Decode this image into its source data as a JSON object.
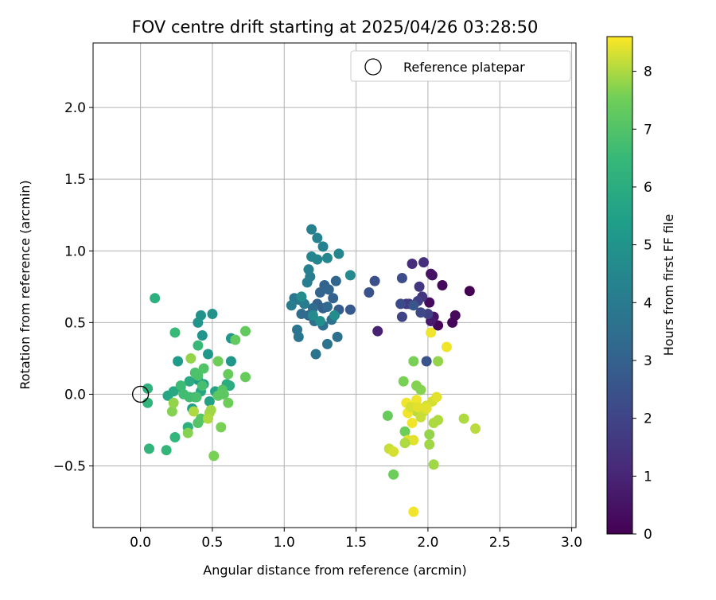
{
  "chart_data": {
    "type": "scatter",
    "title": "FOV centre drift starting at 2025/04/26 03:28:50",
    "xlabel": "Angular distance from reference (arcmin)",
    "ylabel": "Rotation from reference (arcmin)",
    "xlim": [
      -0.33,
      3.03
    ],
    "ylim": [
      -0.93,
      2.45
    ],
    "x_ticks": [
      "0.0",
      "0.5",
      "1.0",
      "1.5",
      "2.0",
      "2.5",
      "3.0"
    ],
    "y_ticks": [
      "−0.5",
      "0.0",
      "0.5",
      "1.0",
      "1.5",
      "2.0"
    ],
    "grid": true,
    "legend": {
      "placement": "top-right",
      "label": "Reference platepar"
    },
    "reference_point": {
      "x": 0.0,
      "y": 0.0
    },
    "colorbar": {
      "label": "Hours from first FF file",
      "min": 0,
      "max": 8.6,
      "ticks": [
        "0",
        "1",
        "2",
        "3",
        "4",
        "5",
        "6",
        "7",
        "8"
      ],
      "colormap": "viridis"
    },
    "points": [
      [
        2.29,
        0.72,
        0.0
      ],
      [
        2.07,
        0.48,
        0.1
      ],
      [
        2.17,
        0.5,
        0.15
      ],
      [
        2.1,
        0.76,
        0.2
      ],
      [
        2.19,
        0.55,
        0.25
      ],
      [
        2.01,
        0.64,
        0.3
      ],
      [
        2.03,
        0.83,
        0.4
      ],
      [
        2.02,
        0.84,
        0.5
      ],
      [
        2.04,
        0.54,
        0.6
      ],
      [
        2.02,
        0.51,
        0.7
      ],
      [
        1.65,
        0.44,
        0.9
      ],
      [
        1.89,
        0.91,
        1.2
      ],
      [
        1.97,
        0.92,
        1.3
      ],
      [
        1.85,
        0.63,
        1.4
      ],
      [
        1.96,
        0.68,
        1.5
      ],
      [
        1.94,
        0.75,
        1.6
      ],
      [
        1.87,
        0.63,
        1.7
      ],
      [
        1.93,
        0.65,
        1.8
      ],
      [
        2.0,
        0.56,
        1.9
      ],
      [
        1.82,
        0.54,
        2.0
      ],
      [
        1.95,
        0.57,
        2.1
      ],
      [
        1.81,
        0.63,
        2.2
      ],
      [
        1.82,
        0.81,
        2.3
      ],
      [
        1.63,
        0.79,
        2.4
      ],
      [
        1.59,
        0.71,
        2.5
      ],
      [
        1.99,
        0.23,
        2.5
      ],
      [
        1.9,
        0.62,
        2.6
      ],
      [
        1.46,
        0.59,
        2.7
      ],
      [
        1.38,
        0.59,
        2.8
      ],
      [
        1.27,
        0.6,
        2.9
      ],
      [
        1.23,
        0.63,
        3.0
      ],
      [
        1.34,
        0.67,
        3.0
      ],
      [
        1.25,
        0.71,
        3.1
      ],
      [
        1.28,
        0.76,
        3.1
      ],
      [
        1.31,
        0.73,
        3.2
      ],
      [
        1.36,
        0.79,
        3.2
      ],
      [
        1.3,
        0.61,
        3.3
      ],
      [
        1.17,
        0.55,
        3.3
      ],
      [
        1.12,
        0.56,
        3.4
      ],
      [
        1.2,
        0.6,
        3.4
      ],
      [
        1.27,
        0.48,
        3.5
      ],
      [
        1.21,
        0.51,
        3.5
      ],
      [
        1.33,
        0.52,
        3.6
      ],
      [
        1.37,
        0.4,
        3.6
      ],
      [
        1.3,
        0.35,
        3.7
      ],
      [
        1.22,
        0.28,
        3.7
      ],
      [
        1.1,
        0.4,
        3.8
      ],
      [
        1.09,
        0.45,
        3.8
      ],
      [
        1.1,
        0.66,
        3.9
      ],
      [
        1.07,
        0.67,
        3.9
      ],
      [
        1.05,
        0.62,
        4.0
      ],
      [
        1.14,
        0.63,
        4.0
      ],
      [
        1.16,
        0.78,
        4.1
      ],
      [
        1.18,
        0.82,
        4.1
      ],
      [
        1.17,
        0.87,
        4.2
      ],
      [
        1.19,
        1.15,
        4.2
      ],
      [
        1.23,
        1.09,
        4.3
      ],
      [
        1.27,
        1.03,
        4.3
      ],
      [
        1.19,
        0.96,
        4.4
      ],
      [
        1.23,
        0.94,
        4.4
      ],
      [
        1.3,
        0.95,
        4.5
      ],
      [
        1.38,
        0.98,
        4.5
      ],
      [
        1.46,
        0.83,
        4.6
      ],
      [
        1.2,
        0.55,
        4.6
      ],
      [
        1.35,
        0.55,
        4.7
      ],
      [
        1.12,
        0.68,
        4.7
      ],
      [
        1.25,
        0.51,
        4.8
      ],
      [
        0.5,
        0.56,
        4.9
      ],
      [
        0.42,
        0.55,
        4.9
      ],
      [
        0.4,
        0.5,
        5.0
      ],
      [
        0.43,
        0.41,
        5.0
      ],
      [
        0.63,
        0.39,
        5.1
      ],
      [
        0.63,
        0.23,
        5.1
      ],
      [
        0.47,
        0.28,
        5.2
      ],
      [
        0.26,
        0.23,
        5.3
      ],
      [
        0.4,
        0.1,
        5.3
      ],
      [
        0.44,
        0.07,
        5.4
      ],
      [
        0.36,
        -0.1,
        5.4
      ],
      [
        0.33,
        -0.23,
        5.5
      ],
      [
        0.48,
        -0.05,
        5.5
      ],
      [
        0.52,
        0.02,
        5.6
      ],
      [
        0.42,
        0.02,
        5.7
      ],
      [
        0.19,
        -0.01,
        5.7
      ],
      [
        0.23,
        0.02,
        5.8
      ],
      [
        0.28,
        0.05,
        5.8
      ],
      [
        0.34,
        0.09,
        5.9
      ],
      [
        0.6,
        0.07,
        6.0
      ],
      [
        0.62,
        0.06,
        6.0
      ],
      [
        0.33,
        -0.23,
        6.1
      ],
      [
        0.1,
        0.67,
        6.1
      ],
      [
        0.05,
        0.04,
        6.2
      ],
      [
        0.05,
        -0.06,
        6.3
      ],
      [
        0.06,
        -0.38,
        6.3
      ],
      [
        0.18,
        -0.39,
        6.4
      ],
      [
        0.24,
        -0.3,
        6.4
      ],
      [
        0.24,
        0.43,
        6.5
      ],
      [
        0.4,
        0.34,
        6.5
      ],
      [
        0.28,
        0.06,
        6.6
      ],
      [
        0.38,
        -0.02,
        6.6
      ],
      [
        0.3,
        0.0,
        6.7
      ],
      [
        0.34,
        -0.02,
        6.7
      ],
      [
        0.39,
        -0.02,
        6.8
      ],
      [
        0.43,
        0.06,
        6.8
      ],
      [
        0.4,
        0.13,
        6.9
      ],
      [
        0.38,
        0.15,
        6.9
      ],
      [
        0.44,
        0.18,
        7.0
      ],
      [
        0.4,
        -0.2,
        7.0
      ],
      [
        0.42,
        -0.17,
        7.1
      ],
      [
        0.57,
        0.03,
        7.1
      ],
      [
        0.54,
        -0.01,
        7.2
      ],
      [
        0.58,
        0.0,
        7.2
      ],
      [
        0.66,
        0.38,
        7.3
      ],
      [
        0.73,
        0.44,
        7.3
      ],
      [
        0.73,
        0.12,
        7.4
      ],
      [
        0.61,
        0.14,
        7.4
      ],
      [
        0.54,
        0.23,
        7.5
      ],
      [
        0.61,
        -0.06,
        7.5
      ],
      [
        0.51,
        -0.43,
        7.6
      ],
      [
        0.56,
        -0.23,
        7.6
      ],
      [
        0.33,
        -0.27,
        7.7
      ],
      [
        0.22,
        -0.12,
        7.7
      ],
      [
        0.23,
        -0.06,
        7.8
      ],
      [
        0.35,
        0.25,
        7.8
      ],
      [
        0.49,
        -0.11,
        7.9
      ],
      [
        0.48,
        -0.13,
        7.9
      ],
      [
        0.47,
        -0.17,
        8.0
      ],
      [
        0.37,
        -0.12,
        8.0
      ],
      [
        1.72,
        -0.15,
        7.4
      ],
      [
        1.76,
        -0.56,
        7.5
      ],
      [
        1.84,
        -0.26,
        7.5
      ],
      [
        1.83,
        0.09,
        7.6
      ],
      [
        1.9,
        0.23,
        7.6
      ],
      [
        1.92,
        0.06,
        7.7
      ],
      [
        1.95,
        0.03,
        7.7
      ],
      [
        2.07,
        0.23,
        7.8
      ],
      [
        2.01,
        -0.28,
        7.8
      ],
      [
        2.01,
        -0.35,
        7.9
      ],
      [
        2.04,
        -0.49,
        7.9
      ],
      [
        2.04,
        -0.2,
        8.0
      ],
      [
        2.07,
        -0.18,
        8.0
      ],
      [
        2.25,
        -0.17,
        8.0
      ],
      [
        2.33,
        -0.24,
        8.1
      ],
      [
        1.92,
        -0.12,
        8.1
      ],
      [
        1.95,
        -0.16,
        8.2
      ],
      [
        1.97,
        -0.12,
        8.2
      ],
      [
        1.99,
        -0.08,
        8.3
      ],
      [
        2.03,
        -0.05,
        8.3
      ],
      [
        2.06,
        -0.02,
        8.4
      ],
      [
        1.9,
        -0.32,
        8.4
      ],
      [
        1.86,
        -0.32,
        8.4
      ],
      [
        1.89,
        -0.2,
        8.5
      ],
      [
        1.86,
        -0.13,
        8.5
      ],
      [
        1.85,
        -0.06,
        8.5
      ],
      [
        1.9,
        -0.82,
        8.5
      ],
      [
        1.92,
        -0.04,
        8.5
      ],
      [
        2.02,
        0.43,
        8.5
      ],
      [
        2.13,
        0.33,
        8.5
      ],
      [
        1.73,
        -0.38,
        8.2
      ],
      [
        1.76,
        -0.4,
        8.3
      ],
      [
        1.84,
        -0.34,
        8.0
      ],
      [
        1.88,
        -0.09,
        8.3
      ],
      [
        1.93,
        -0.09,
        8.4
      ],
      [
        1.99,
        -0.1,
        8.4
      ]
    ]
  }
}
